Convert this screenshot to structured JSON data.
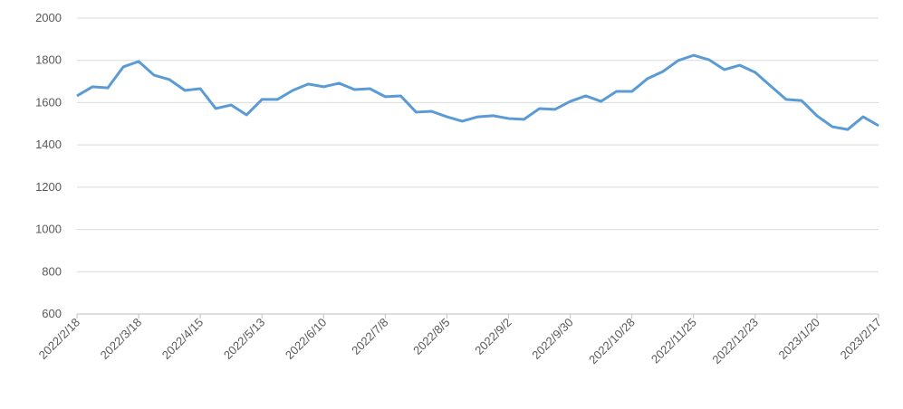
{
  "chart_data": {
    "type": "line",
    "categories": [
      "2022/2/18",
      null,
      null,
      null,
      "2022/3/18",
      null,
      null,
      null,
      "2022/4/15",
      null,
      null,
      null,
      "2022/5/13",
      null,
      null,
      null,
      "2022/6/10",
      null,
      null,
      null,
      "2022/7/8",
      null,
      null,
      null,
      "2022/8/5",
      null,
      null,
      null,
      "2022/9/2",
      null,
      null,
      null,
      "2022/9/30",
      null,
      null,
      null,
      "2022/10/28",
      null,
      null,
      null,
      "2022/11/25",
      null,
      null,
      null,
      "2022/12/23",
      null,
      null,
      null,
      "2023/1/20",
      null,
      null,
      null,
      "2023/2/17"
    ],
    "series": [
      {
        "color": "#5b9bd5",
        "values": [
          1632,
          1675,
          1670,
          1769,
          1795,
          1730,
          1709,
          1658,
          1666,
          1572,
          1589,
          1542,
          1615,
          1615,
          1658,
          1688,
          1675,
          1692,
          1662,
          1666,
          1628,
          1632,
          1555,
          1559,
          1533,
          1512,
          1533,
          1538,
          1525,
          1521,
          1572,
          1568,
          1606,
          1632,
          1606,
          1653,
          1653,
          1713,
          1747,
          1799,
          1824,
          1803,
          1756,
          1777,
          1743,
          1679,
          1615,
          1610,
          1538,
          1486,
          1473,
          1533,
          1491
        ]
      }
    ],
    "ylim": [
      600,
      2000
    ],
    "yticks": [
      600,
      800,
      1000,
      1200,
      1400,
      1600,
      1800,
      2000
    ],
    "grid": true
  }
}
